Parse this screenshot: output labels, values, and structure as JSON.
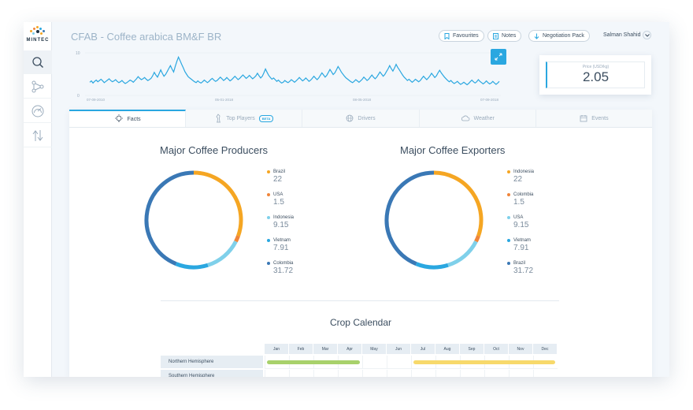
{
  "brand": {
    "logo_text": "MINTEC"
  },
  "sidebar": {
    "items": [
      {
        "name": "search",
        "icon": "search-icon",
        "active": true
      },
      {
        "name": "network",
        "icon": "network-icon",
        "active": false
      },
      {
        "name": "gauge",
        "icon": "gauge-icon",
        "active": false
      },
      {
        "name": "transfer",
        "icon": "transfer-icon",
        "active": false
      }
    ]
  },
  "header": {
    "title": "CFAB - Coffee arabica BM&F BR",
    "buttons": {
      "favourites": "Favourites",
      "notes": "Notes",
      "negotiation": "Negotiation Pack"
    },
    "user": "Salman Shahid"
  },
  "price_chart": {
    "y_ticks": [
      "10",
      "0"
    ],
    "x_ticks": [
      "07-09-2010",
      "05-01-2018",
      "08-05-2018",
      "07-09-2018"
    ],
    "color": "#2aa7e0",
    "values": [
      3.1,
      3.4,
      2.9,
      3.3,
      3.6,
      3.2,
      3.5,
      3.8,
      3.4,
      3.0,
      3.3,
      3.6,
      3.9,
      3.5,
      3.2,
      3.4,
      3.7,
      3.3,
      3.0,
      3.2,
      3.5,
      3.1,
      2.8,
      3.0,
      3.3,
      3.6,
      3.4,
      3.1,
      3.5,
      3.9,
      4.4,
      4.0,
      3.7,
      3.9,
      4.2,
      3.8,
      3.5,
      3.7,
      4.0,
      4.6,
      5.4,
      4.8,
      4.3,
      5.1,
      6.0,
      5.2,
      4.5,
      4.9,
      5.6,
      6.3,
      7.0,
      6.2,
      5.5,
      6.8,
      8.0,
      9.0,
      8.2,
      7.3,
      6.5,
      5.6,
      5.0,
      4.4,
      4.1,
      3.8,
      3.5,
      3.2,
      3.0,
      3.4,
      3.1,
      2.9,
      3.2,
      3.6,
      3.3,
      3.0,
      3.3,
      3.7,
      4.0,
      3.6,
      3.3,
      3.5,
      3.9,
      4.3,
      3.9,
      3.5,
      3.8,
      4.2,
      3.8,
      3.4,
      3.7,
      4.1,
      4.5,
      4.1,
      3.7,
      4.0,
      4.4,
      4.8,
      4.4,
      4.0,
      4.3,
      4.7,
      4.3,
      3.9,
      4.2,
      4.6,
      5.2,
      4.6,
      4.1,
      4.5,
      5.3,
      6.2,
      5.4,
      4.7,
      4.2,
      3.8,
      4.1,
      3.7,
      3.3,
      3.6,
      3.2,
      2.9,
      3.1,
      3.5,
      3.2,
      3.0,
      3.3,
      3.7,
      3.4,
      3.1,
      3.4,
      3.8,
      4.2,
      3.8,
      3.4,
      3.7,
      4.1,
      3.7,
      3.3,
      3.6,
      4.0,
      4.5,
      4.1,
      3.7,
      4.1,
      4.7,
      5.3,
      4.8,
      4.3,
      4.7,
      5.4,
      6.1,
      5.5,
      4.9,
      5.3,
      6.0,
      6.8,
      6.2,
      5.5,
      5.0,
      4.5,
      4.1,
      3.8,
      3.5,
      3.2,
      3.0,
      3.3,
      3.7,
      3.4,
      3.1,
      3.4,
      3.8,
      4.3,
      3.9,
      3.5,
      3.8,
      4.3,
      4.8,
      4.3,
      3.9,
      4.3,
      4.9,
      5.5,
      5.0,
      4.5,
      4.9,
      5.6,
      6.2,
      7.0,
      6.3,
      5.7,
      6.4,
      7.3,
      6.6,
      6.0,
      5.4,
      4.8,
      4.3,
      3.9,
      3.5,
      3.8,
      3.4,
      3.1,
      3.4,
      3.8,
      3.5,
      3.2,
      3.5,
      4.0,
      4.5,
      4.1,
      3.7,
      4.1,
      4.6,
      5.2,
      4.7,
      4.2,
      4.6,
      5.3,
      5.9,
      5.3,
      4.8,
      4.3,
      3.9,
      3.5,
      3.2,
      3.5,
      3.1,
      2.8,
      3.0,
      3.3,
      2.9,
      2.6,
      2.8,
      3.1,
      2.8,
      2.5,
      2.8,
      3.2,
      3.6,
      3.2,
      2.9,
      3.2,
      3.7,
      3.3,
      3.0,
      2.7,
      3.0,
      3.4,
      3.0,
      2.7,
      2.9,
      3.3,
      2.9,
      2.6,
      2.9,
      3.3
    ]
  },
  "price_card": {
    "label": "Price (USD/kg)",
    "value": "2.05"
  },
  "tabs": [
    {
      "label": "Facts",
      "icon": "lightbulb-icon",
      "active": true
    },
    {
      "label": "Top Players",
      "icon": "chess-icon",
      "badge": "BETA"
    },
    {
      "label": "Drivers",
      "icon": "globe-icon"
    },
    {
      "label": "Weather",
      "icon": "cloud-icon"
    },
    {
      "label": "Events",
      "icon": "calendar-icon"
    }
  ],
  "producers": {
    "title": "Major Coffee Producers",
    "items": [
      {
        "name": "Brazil",
        "value": "22",
        "color": "#f5a623"
      },
      {
        "name": "USA",
        "value": "1.5",
        "color": "#f0853a"
      },
      {
        "name": "Indonesia",
        "value": "9.15",
        "color": "#7fd0ea"
      },
      {
        "name": "Vietnam",
        "value": "7.91",
        "color": "#2aa7e0"
      },
      {
        "name": "Colombia",
        "value": "31.72",
        "color": "#3a78b5"
      }
    ]
  },
  "exporters": {
    "title": "Major Coffee Exporters",
    "items": [
      {
        "name": "Indonesia",
        "value": "22",
        "color": "#f5a623"
      },
      {
        "name": "Colombia",
        "value": "1.5",
        "color": "#f0853a"
      },
      {
        "name": "USA",
        "value": "9.15",
        "color": "#7fd0ea"
      },
      {
        "name": "Vietnam",
        "value": "7.91",
        "color": "#2aa7e0"
      },
      {
        "name": "Brazil",
        "value": "31.72",
        "color": "#3a78b5"
      }
    ]
  },
  "crop_calendar": {
    "title": "Crop Calendar",
    "months": [
      "Jan",
      "Feb",
      "Mar",
      "Apr",
      "May",
      "Jun",
      "Jul",
      "Aug",
      "Sep",
      "Oct",
      "Nov",
      "Dec"
    ],
    "rows": [
      {
        "label": "Northern Hemisphere"
      },
      {
        "label": "Southern Hemisphere"
      }
    ],
    "colors": {
      "harvest": "#a8d16b",
      "planting": "#f7d96b"
    }
  }
}
